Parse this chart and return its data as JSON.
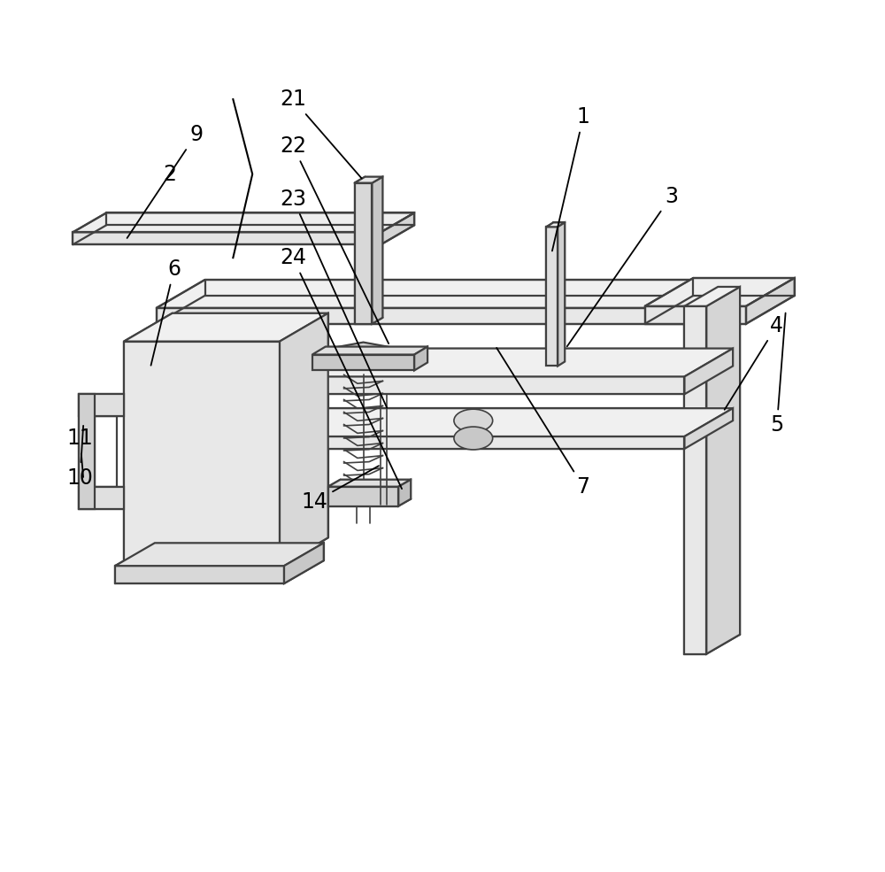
{
  "bg_color": "#ffffff",
  "line_color": "#404040",
  "line_width": 1.6,
  "thin_lw": 1.2,
  "fig_w": 10.0,
  "fig_h": 9.85,
  "dpi": 100
}
